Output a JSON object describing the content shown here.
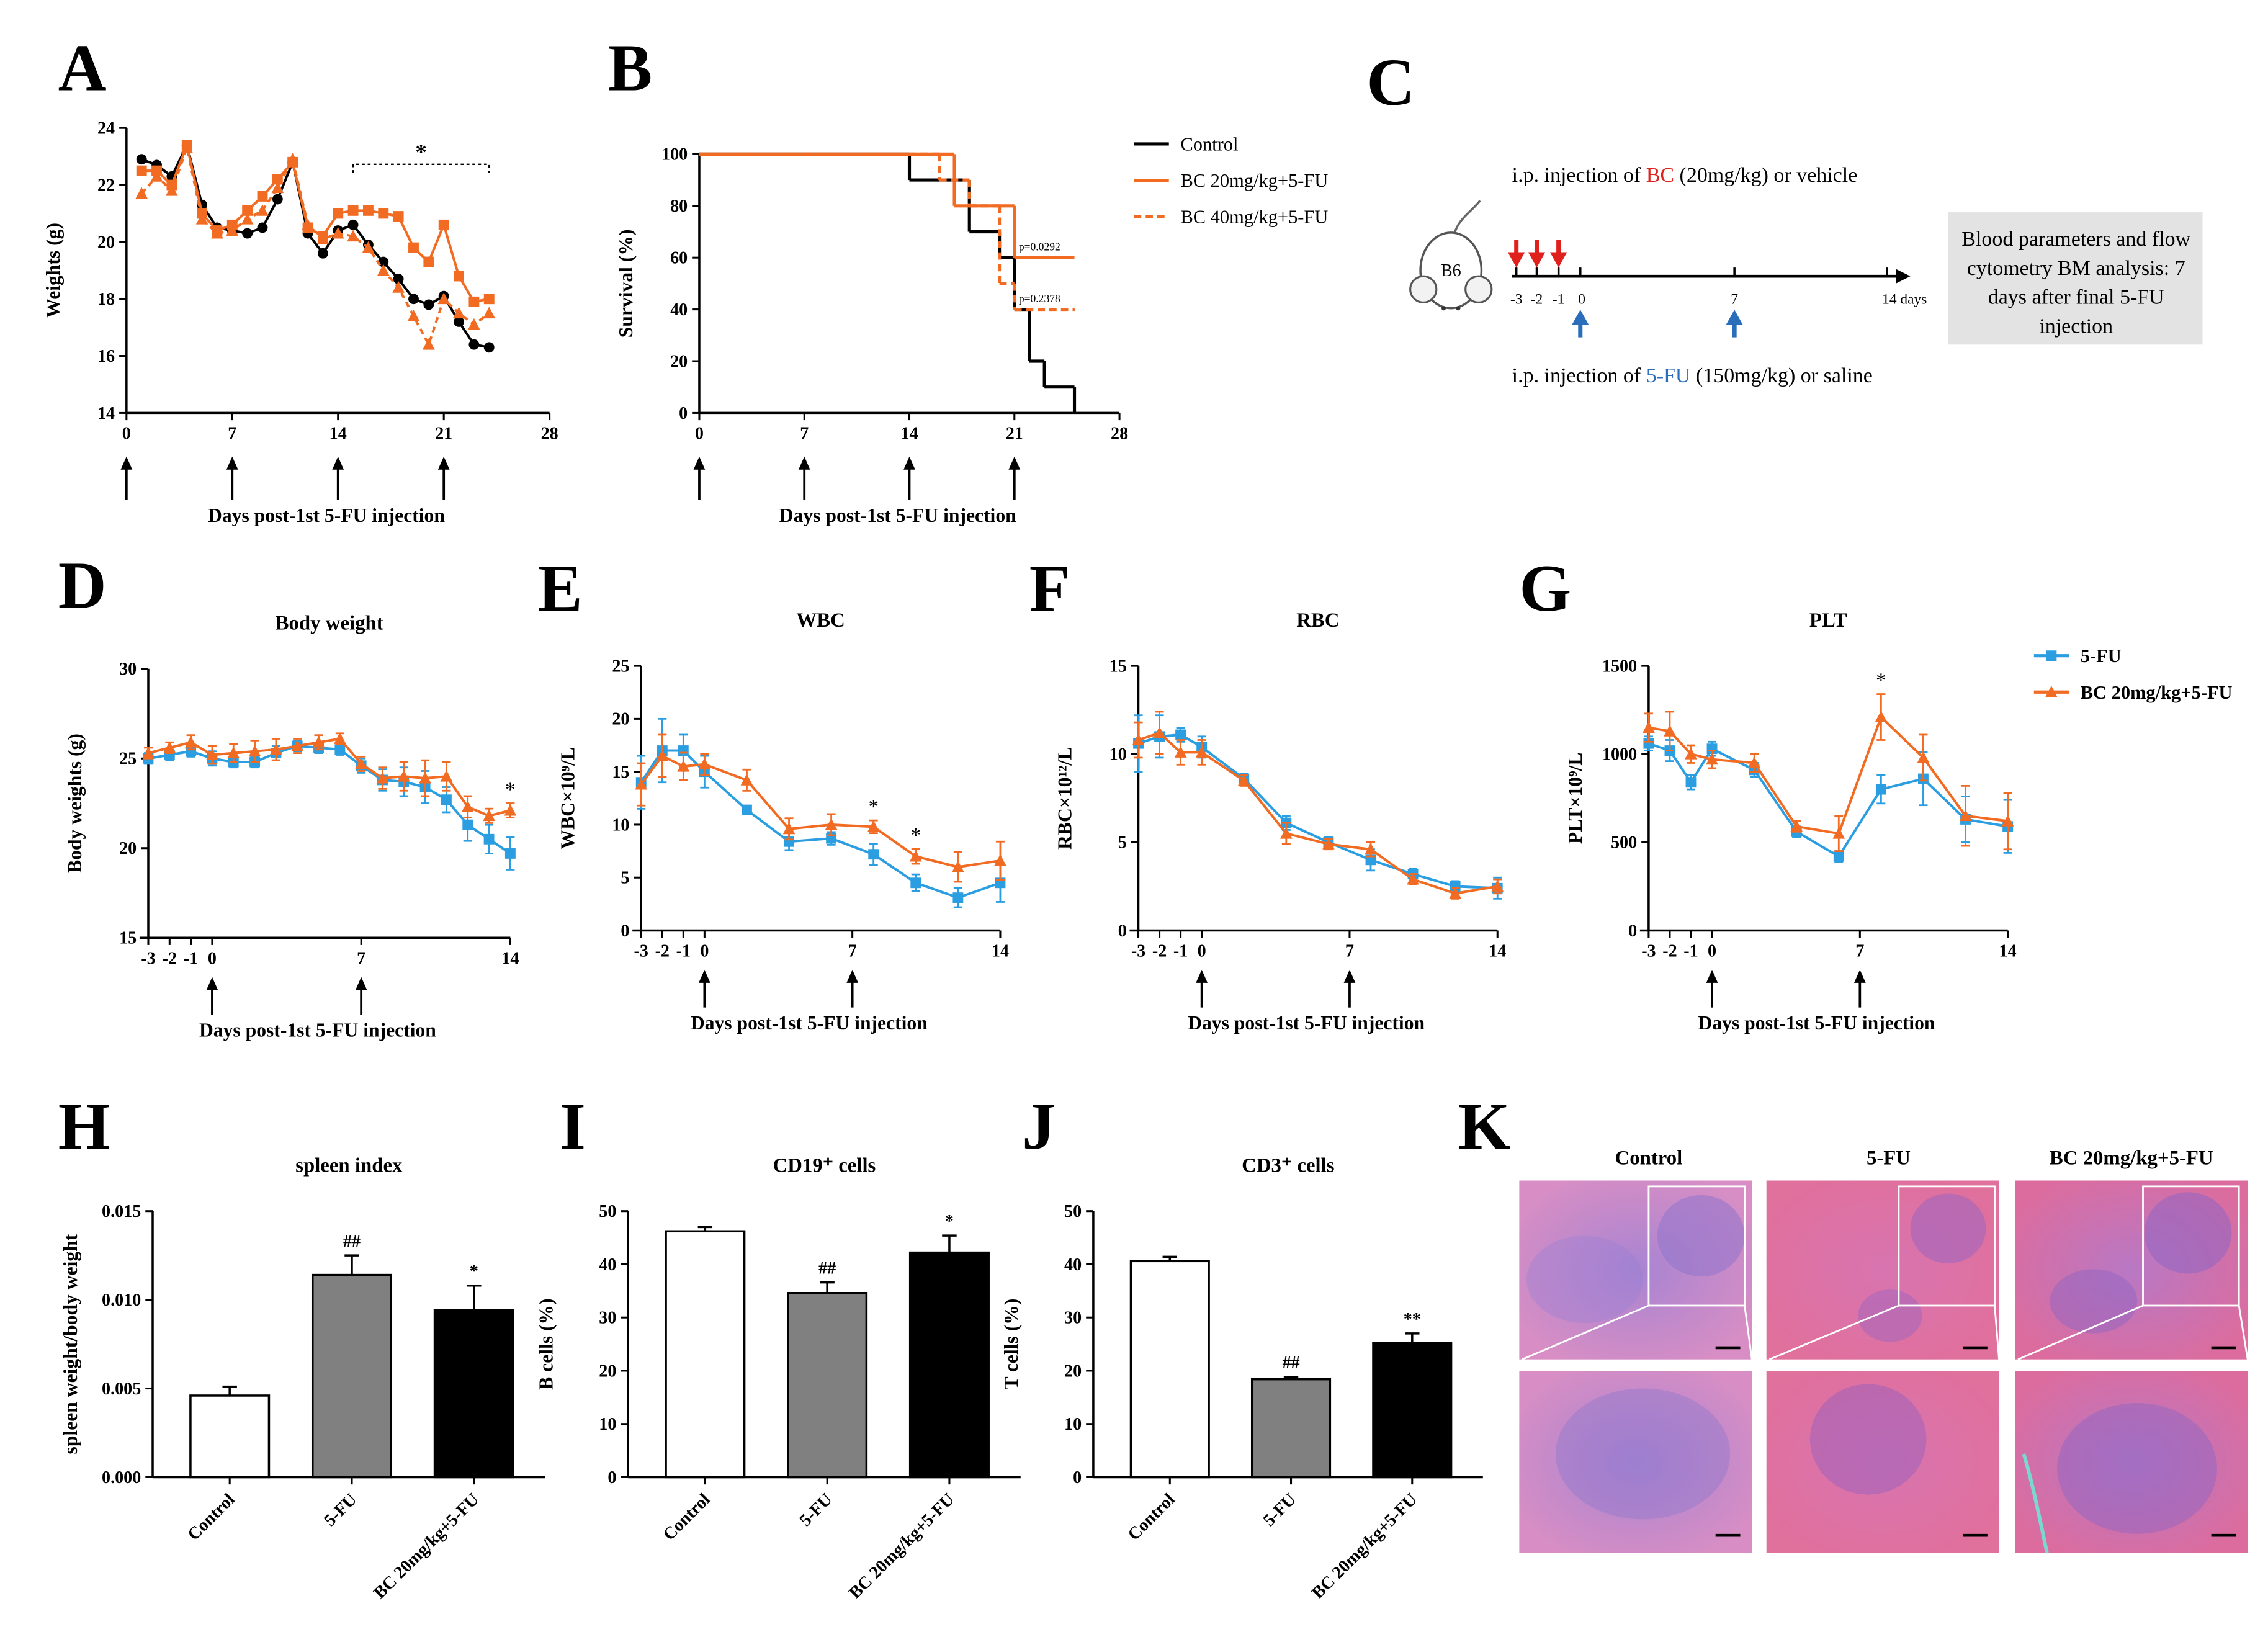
{
  "chart_data": [
    {
      "panel": "A",
      "type": "line",
      "xlabel": "Days post-1st 5-FU injection",
      "ylabel": "Weights (g)",
      "xlim": [
        0,
        28
      ],
      "ylim": [
        14,
        24
      ],
      "xticks": [
        0,
        7,
        14,
        21,
        28
      ],
      "yticks": [
        14,
        16,
        18,
        20,
        22,
        24
      ],
      "x": [
        1,
        2,
        3,
        4,
        5,
        6,
        7,
        8,
        9,
        10,
        11,
        12,
        13,
        14,
        15,
        16,
        17,
        18,
        19,
        20,
        21,
        22,
        23,
        24
      ],
      "series": [
        {
          "color": "#000000",
          "marker": "circle",
          "dash": false,
          "values": [
            22.9,
            22.7,
            22.3,
            23.4,
            21.3,
            20.5,
            20.4,
            20.3,
            20.5,
            21.5,
            22.8,
            20.3,
            19.6,
            20.4,
            20.6,
            19.9,
            19.3,
            18.7,
            18.0,
            17.8,
            18.1,
            17.2,
            16.4,
            16.3
          ]
        },
        {
          "color": "#f26b22",
          "marker": "square",
          "dash": false,
          "values": [
            22.5,
            22.5,
            22.0,
            23.4,
            21.0,
            20.4,
            20.6,
            21.1,
            21.6,
            22.2,
            22.8,
            20.5,
            20.2,
            21.0,
            21.1,
            21.1,
            21.0,
            20.9,
            19.8,
            19.3,
            20.6,
            18.8,
            17.9,
            18.0
          ]
        },
        {
          "color": "#f26b22",
          "marker": "triangle",
          "dash": true,
          "values": [
            21.7,
            22.3,
            21.8,
            23.3,
            20.8,
            20.3,
            20.4,
            20.8,
            21.1,
            21.9,
            22.9,
            20.6,
            20.1,
            20.3,
            20.2,
            19.8,
            19.0,
            18.4,
            17.4,
            16.4,
            18.0,
            17.5,
            17.1,
            17.5
          ]
        }
      ],
      "arrows": [
        0,
        7,
        14,
        21
      ],
      "bracket": [
        15,
        24
      ],
      "annotations": [
        "*"
      ]
    },
    {
      "panel": "B",
      "type": "step",
      "xlabel": "Days post-1st 5-FU injection",
      "ylabel": "Survival (%)",
      "xlim": [
        0,
        28
      ],
      "ylim": [
        0,
        100
      ],
      "xticks": [
        0,
        7,
        14,
        21,
        28
      ],
      "yticks": [
        0,
        20,
        40,
        60,
        80,
        100
      ],
      "series": [
        {
          "name": "Control",
          "color": "#000000",
          "dash": false,
          "x": [
            0,
            14,
            18,
            20,
            21,
            22,
            23,
            25
          ],
          "values": [
            100,
            90,
            70,
            60,
            40,
            20,
            10,
            0
          ]
        },
        {
          "name": "BC 20mg/kg+5-FU",
          "color": "#f26b22",
          "dash": false,
          "x": [
            0,
            17,
            21,
            25
          ],
          "values": [
            100,
            80,
            60,
            60
          ]
        },
        {
          "name": "BC 40mg/kg+5-FU",
          "color": "#f26b22",
          "dash": true,
          "x": [
            0,
            16,
            18,
            20,
            21,
            25
          ],
          "values": [
            100,
            90,
            80,
            50,
            40,
            40
          ]
        }
      ],
      "arrows": [
        0,
        7,
        14,
        21
      ],
      "annotations": [
        "p=0.0292",
        "p=0.2378"
      ],
      "legend": "right"
    },
    {
      "panel": "D",
      "type": "line",
      "title": "Body weight",
      "xlabel": "Days post-1st 5-FU injection",
      "ylabel": "Body weights (g)",
      "xlim": [
        -3,
        14
      ],
      "ylim": [
        15,
        30
      ],
      "xticks": [
        -3,
        -2,
        -1,
        0,
        7,
        14
      ],
      "yticks": [
        15,
        20,
        25,
        30
      ],
      "x": [
        -3,
        -2,
        -1,
        0,
        1,
        2,
        3,
        4,
        5,
        6,
        7,
        8,
        9,
        10,
        11,
        12,
        13,
        14
      ],
      "series": [
        {
          "color": "#2a9ee0",
          "marker": "square",
          "values": [
            25.0,
            25.2,
            25.4,
            25.0,
            24.8,
            24.8,
            25.3,
            25.7,
            25.6,
            25.5,
            24.6,
            23.8,
            23.7,
            23.4,
            22.7,
            21.3,
            20.5,
            19.7
          ],
          "errors": [
            0.3,
            0.3,
            0.3,
            0.4,
            0.3,
            0.3,
            0.4,
            0.3,
            0.3,
            0.3,
            0.4,
            0.6,
            0.8,
            0.9,
            0.7,
            0.9,
            0.8,
            0.9
          ]
        },
        {
          "color": "#f26b22",
          "marker": "triangle",
          "values": [
            25.3,
            25.6,
            25.9,
            25.2,
            25.3,
            25.4,
            25.5,
            25.7,
            25.9,
            26.1,
            24.7,
            23.9,
            24.0,
            23.9,
            24.0,
            22.3,
            21.8,
            22.1
          ],
          "errors": [
            0.3,
            0.3,
            0.4,
            0.5,
            0.5,
            0.6,
            0.6,
            0.4,
            0.4,
            0.3,
            0.4,
            0.6,
            0.8,
            1.0,
            0.8,
            0.6,
            0.4,
            0.4
          ]
        }
      ],
      "arrows": [
        0,
        7
      ],
      "annotations": [
        "*"
      ]
    },
    {
      "panel": "E",
      "type": "line",
      "title": "WBC",
      "xlabel": "Days post-1st 5-FU injection",
      "ylabel": "WBC×10⁹/L",
      "xlim": [
        -3,
        14
      ],
      "ylim": [
        0,
        25
      ],
      "xticks": [
        -3,
        -2,
        -1,
        0,
        7,
        14
      ],
      "yticks": [
        0,
        5,
        10,
        15,
        20,
        25
      ],
      "x": [
        -3,
        -2,
        -1,
        0,
        2,
        4,
        6,
        8,
        10,
        12,
        14
      ],
      "series": [
        {
          "color": "#2a9ee0",
          "marker": "square",
          "values": [
            14.0,
            17.0,
            17.0,
            15.0,
            11.4,
            8.4,
            8.7,
            7.2,
            4.5,
            3.1,
            4.5
          ],
          "errors": [
            2.5,
            3.0,
            1.5,
            1.5,
            0.3,
            0.8,
            0.6,
            1.0,
            0.8,
            0.9,
            1.8
          ]
        },
        {
          "color": "#f26b22",
          "marker": "triangle",
          "values": [
            13.8,
            16.5,
            15.5,
            15.7,
            14.2,
            9.6,
            10.0,
            9.8,
            7.0,
            6.0,
            6.6
          ],
          "errors": [
            2.0,
            2.0,
            1.3,
            1.0,
            1.0,
            1.0,
            1.0,
            0.6,
            0.7,
            1.4,
            1.8
          ]
        }
      ],
      "arrows": [
        0,
        7
      ],
      "annotations": [
        "*",
        "*"
      ]
    },
    {
      "panel": "F",
      "type": "line",
      "title": "RBC",
      "xlabel": "Days post-1st 5-FU injection",
      "ylabel": "RBC×10¹²/L",
      "xlim": [
        -3,
        14
      ],
      "ylim": [
        0,
        15
      ],
      "xticks": [
        -3,
        -2,
        -1,
        0,
        7,
        14
      ],
      "yticks": [
        0,
        5,
        10,
        15
      ],
      "x": [
        -3,
        -2,
        -1,
        0,
        2,
        4,
        6,
        8,
        10,
        12,
        14
      ],
      "series": [
        {
          "color": "#2a9ee0",
          "marker": "square",
          "values": [
            10.6,
            11.0,
            11.1,
            10.4,
            8.6,
            6.1,
            5.0,
            4.0,
            3.2,
            2.5,
            2.4
          ],
          "errors": [
            1.6,
            1.2,
            0.4,
            0.6,
            0.3,
            0.4,
            0.3,
            0.6,
            0.3,
            0.3,
            0.6
          ]
        },
        {
          "color": "#f26b22",
          "marker": "triangle",
          "values": [
            10.8,
            11.2,
            10.1,
            10.1,
            8.5,
            5.5,
            4.9,
            4.6,
            2.9,
            2.1,
            2.5
          ],
          "errors": [
            1.0,
            1.2,
            0.7,
            0.7,
            0.3,
            0.6,
            0.3,
            0.4,
            0.3,
            0.3,
            0.4
          ]
        }
      ],
      "arrows": [
        0,
        7
      ]
    },
    {
      "panel": "G",
      "type": "line",
      "title": "PLT",
      "xlabel": "Days post-1st 5-FU injection",
      "ylabel": "PLT×10⁹/L",
      "xlim": [
        -3,
        14
      ],
      "ylim": [
        0,
        1500
      ],
      "xticks": [
        -3,
        -2,
        -1,
        0,
        7,
        14
      ],
      "yticks": [
        0,
        500,
        1000,
        1500
      ],
      "x": [
        -3,
        -2,
        -1,
        0,
        2,
        4,
        6,
        8,
        10,
        12,
        14
      ],
      "series": [
        {
          "name": "5-FU",
          "color": "#2a9ee0",
          "marker": "square",
          "values": [
            1060,
            1020,
            840,
            1030,
            910,
            560,
            420,
            800,
            860,
            630,
            590
          ],
          "errors": [
            40,
            60,
            40,
            40,
            40,
            30,
            30,
            80,
            150,
            130,
            150
          ]
        },
        {
          "name": "BC 20mg/kg+5-FU",
          "color": "#f26b22",
          "marker": "triangle",
          "values": [
            1150,
            1130,
            1000,
            970,
            950,
            590,
            550,
            1210,
            980,
            650,
            620
          ],
          "errors": [
            80,
            110,
            50,
            50,
            50,
            30,
            100,
            130,
            130,
            170,
            160
          ]
        }
      ],
      "arrows": [
        0,
        7
      ],
      "annotations": [
        "*"
      ],
      "legend": "right"
    },
    {
      "panel": "H",
      "type": "bar",
      "title": "spleen index",
      "ylabel": "spleen weight/body weight",
      "categories": [
        "Control",
        "5-FU",
        "BC 20mg/kg+5-FU"
      ],
      "values": [
        0.0046,
        0.0114,
        0.0094
      ],
      "errors": [
        0.0005,
        0.0011,
        0.0014
      ],
      "colors": [
        "#ffffff",
        "#808080",
        "#000000"
      ],
      "ylim": [
        0,
        0.015
      ],
      "yticks": [
        {
          "value": 0,
          "label": "0.000"
        },
        0.005,
        {
          "value": 0.01,
          "label": "0.010"
        },
        0.015
      ],
      "annotations": [
        "##",
        "*"
      ]
    },
    {
      "panel": "I",
      "type": "bar",
      "title": "CD19⁺ cells",
      "ylabel": "B cells (%)",
      "categories": [
        "Control",
        "5-FU",
        "BC 20mg/kg+5-FU"
      ],
      "values": [
        46.2,
        34.6,
        42.2
      ],
      "errors": [
        0.8,
        2.0,
        3.2
      ],
      "colors": [
        "#ffffff",
        "#808080",
        "#000000"
      ],
      "ylim": [
        0,
        50
      ],
      "yticks": [
        0,
        10,
        20,
        30,
        40,
        50
      ],
      "annotations": [
        "##",
        "*"
      ]
    },
    {
      "panel": "J",
      "type": "bar",
      "title": "CD3⁺ cells",
      "ylabel": "T cells (%)",
      "categories": [
        "Control",
        "5-FU",
        "BC 20mg/kg+5-FU"
      ],
      "values": [
        40.6,
        18.4,
        25.2
      ],
      "errors": [
        0.8,
        0.4,
        1.8
      ],
      "colors": [
        "#ffffff",
        "#808080",
        "#000000"
      ],
      "ylim": [
        0,
        50
      ],
      "yticks": [
        0,
        10,
        20,
        30,
        40,
        50
      ],
      "annotations": [
        "##",
        "**"
      ]
    }
  ],
  "schematic": {
    "panel": "C",
    "mouse": "B6",
    "line1": [
      "i.p. injection of ",
      "BC",
      " (20mg/kg) or vehicle"
    ],
    "timeline": [
      "-3",
      "-2",
      "-1",
      "0",
      "7",
      "14 days"
    ],
    "line2": [
      "i.p. injection of ",
      "5-FU",
      " (150mg/kg) or saline"
    ],
    "box": [
      "Blood parameters and flow",
      "cytometry BM analysis: 7",
      "days after final 5-FU",
      "injection"
    ]
  },
  "histology": {
    "panel": "K",
    "labels": [
      "Control",
      "5-FU",
      "BC 20mg/kg+5-FU"
    ]
  }
}
